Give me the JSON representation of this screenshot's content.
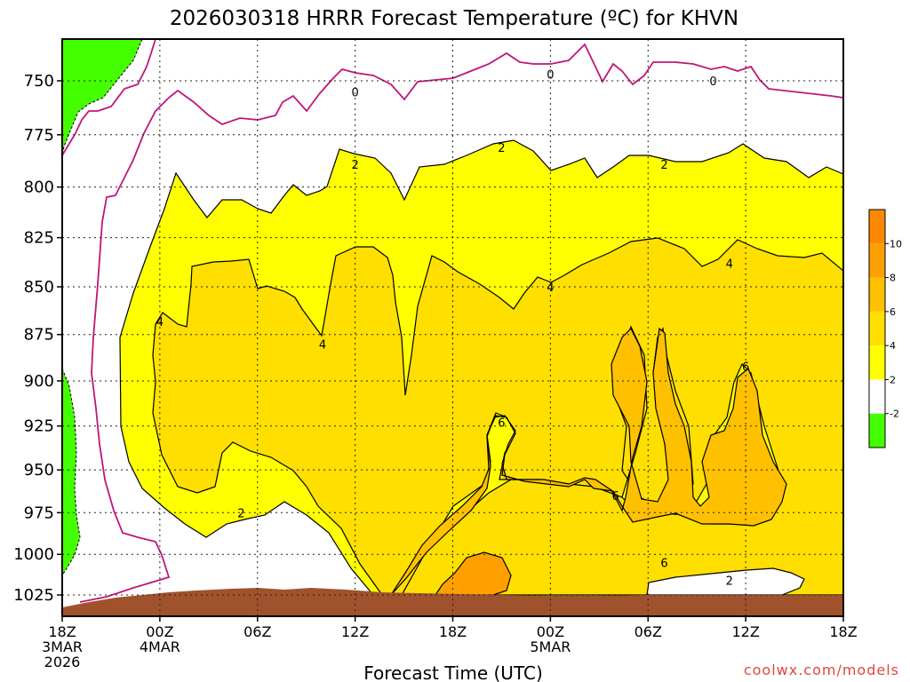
{
  "title": "2026030318 HRRR Forecast Temperature (ºC) for KHVN",
  "xlabel": "Forecast Time (UTC)",
  "credit": "coolwx.com/models",
  "chart_data": {
    "type": "heatmap",
    "title": "2026030318 HRRR Forecast Temperature (ºC) for KHVN",
    "xlabel": "Forecast Time (UTC)",
    "ylabel": "",
    "x_range_hours": [
      0,
      48
    ],
    "y_range_hpa": [
      1030,
      730
    ],
    "y_scale": "pressure (log-like, inverted)",
    "grid": true,
    "x_ticks": [
      {
        "h": 0,
        "lines": [
          "18Z",
          "3MAR",
          "2026"
        ]
      },
      {
        "h": 6,
        "lines": [
          "00Z",
          "4MAR"
        ]
      },
      {
        "h": 12,
        "lines": [
          "06Z"
        ]
      },
      {
        "h": 18,
        "lines": [
          "12Z"
        ]
      },
      {
        "h": 24,
        "lines": [
          "18Z"
        ]
      },
      {
        "h": 30,
        "lines": [
          "00Z",
          "5MAR"
        ]
      },
      {
        "h": 36,
        "lines": [
          "06Z"
        ]
      },
      {
        "h": 42,
        "lines": [
          "12Z"
        ]
      },
      {
        "h": 48,
        "lines": [
          "18Z"
        ]
      }
    ],
    "y_ticks": [
      750,
      775,
      800,
      825,
      850,
      875,
      900,
      925,
      950,
      975,
      1000,
      1025
    ],
    "contour_labels": [
      {
        "text": "0",
        "h": 18.0,
        "p": 755
      },
      {
        "text": "0",
        "h": 30.0,
        "p": 747
      },
      {
        "text": "0",
        "h": 40.0,
        "p": 750
      },
      {
        "text": "2",
        "h": 18.0,
        "p": 789
      },
      {
        "text": "2",
        "h": 27.0,
        "p": 781
      },
      {
        "text": "2",
        "h": 37.0,
        "p": 789
      },
      {
        "text": "2",
        "h": 11.0,
        "p": 975
      },
      {
        "text": "2",
        "h": 41.0,
        "p": 1016
      },
      {
        "text": "4",
        "h": 6.0,
        "p": 868
      },
      {
        "text": "4",
        "h": 16.0,
        "p": 880
      },
      {
        "text": "4",
        "h": 30.0,
        "p": 850
      },
      {
        "text": "4",
        "h": 41.0,
        "p": 838
      },
      {
        "text": "6",
        "h": 27.0,
        "p": 923
      },
      {
        "text": "6",
        "h": 34.0,
        "p": 965
      },
      {
        "text": "6",
        "h": 37.0,
        "p": 1005
      },
      {
        "text": "6",
        "h": 42.0,
        "p": 892
      }
    ],
    "colorbar": {
      "levels": [
        -2,
        2,
        4,
        6,
        8,
        10
      ],
      "colors": [
        "#44ff00",
        "#ffffff",
        "#ffff00",
        "#ffdf00",
        "#ffc000",
        "#ffa000",
        "#ff8800"
      ]
    },
    "colors": {
      "below_minus2": "#44ff00",
      "m2_to_2": "#ffffff",
      "2_to_4": "#ffff00",
      "4_to_6": "#ffdf00",
      "6_to_8": "#ffc000",
      "8_to_10": "#ffa000",
      "terrain": "#a0522d",
      "freezing_line": "#c0157a"
    }
  }
}
